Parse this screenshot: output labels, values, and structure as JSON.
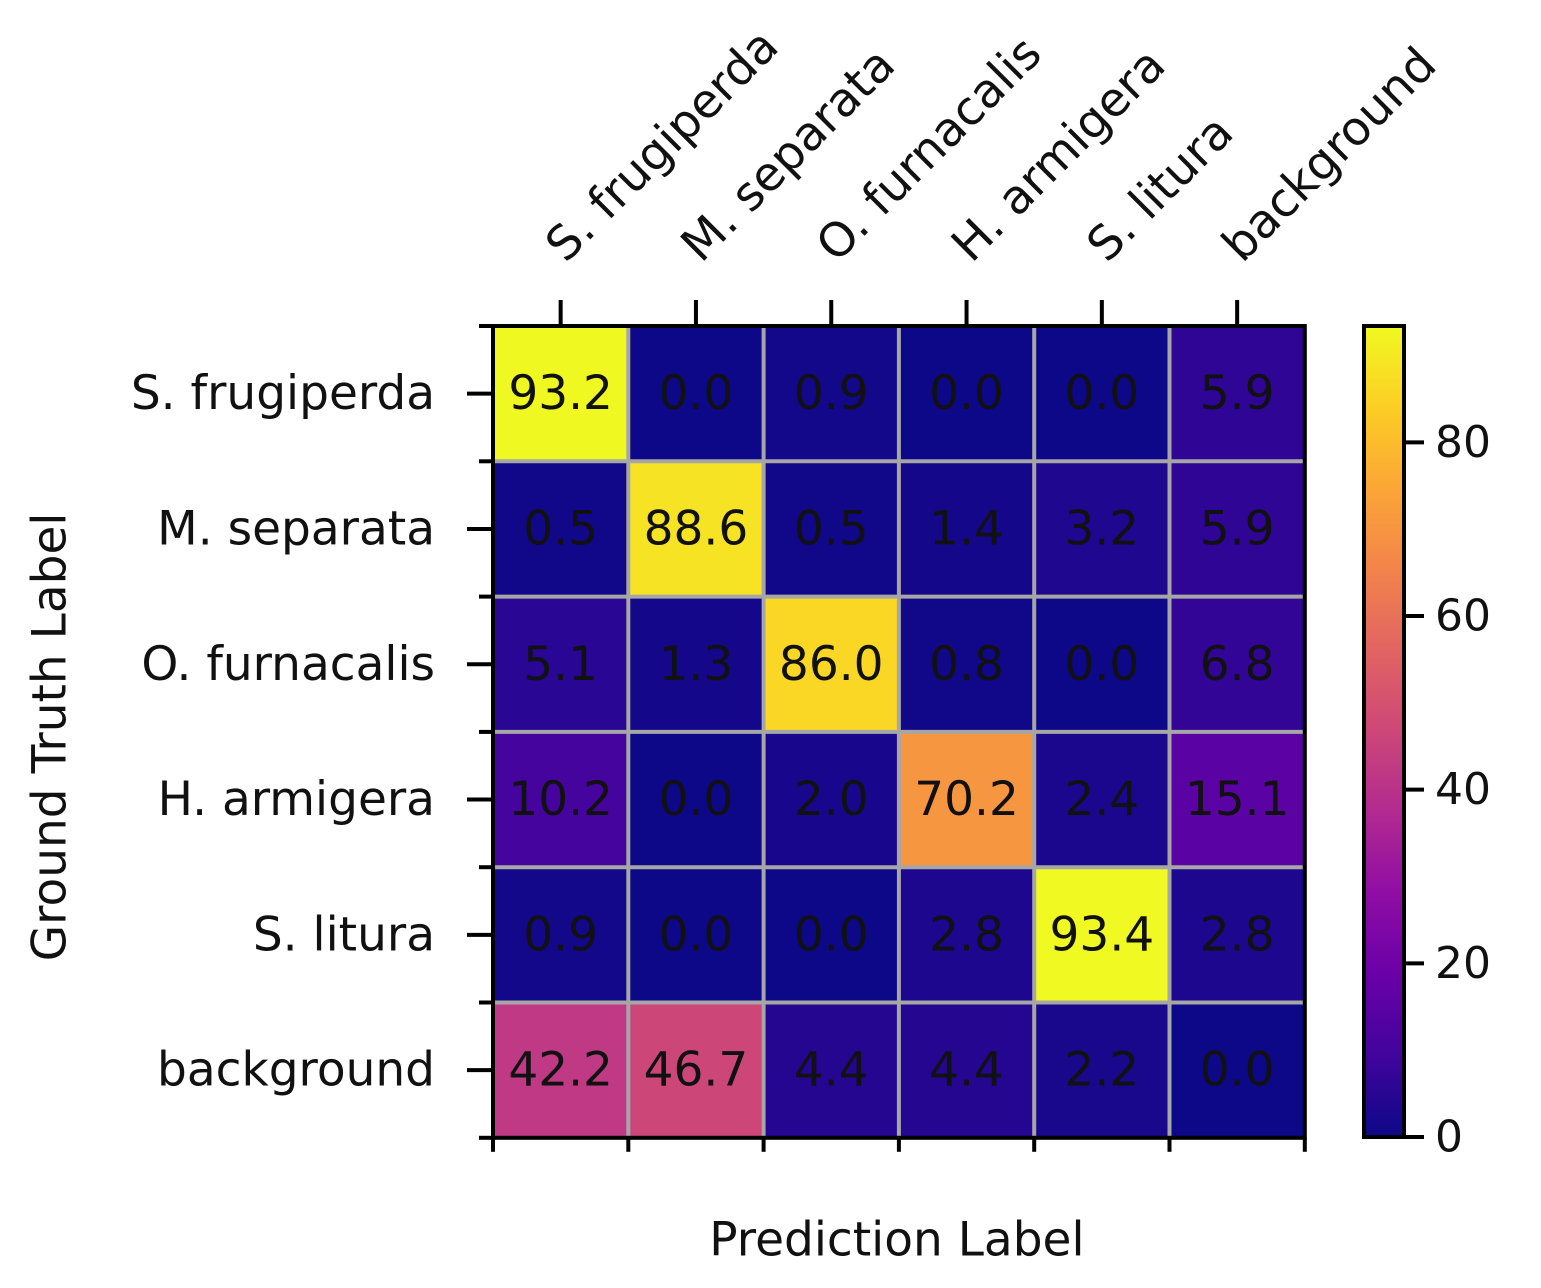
{
  "chart_data": {
    "type": "heatmap",
    "title": "",
    "xlabel": "Prediction Label",
    "ylabel": "Ground Truth Label",
    "x_categories": [
      "S. frugiperda",
      "M. separata",
      "O. furnacalis",
      "H. armigera",
      "S. litura",
      "background"
    ],
    "y_categories": [
      "S. frugiperda",
      "M. separata",
      "O. furnacalis",
      "H. armigera",
      "S. litura",
      "background"
    ],
    "values": [
      [
        93.2,
        0.0,
        0.9,
        0.0,
        0.0,
        5.9
      ],
      [
        0.5,
        88.6,
        0.5,
        1.4,
        3.2,
        5.9
      ],
      [
        5.1,
        1.3,
        86.0,
        0.8,
        0.0,
        6.8
      ],
      [
        10.2,
        0.0,
        2.0,
        70.2,
        2.4,
        15.1
      ],
      [
        0.9,
        0.0,
        0.0,
        2.8,
        93.4,
        2.8
      ],
      [
        42.2,
        46.7,
        4.4,
        4.4,
        2.2,
        0.0
      ]
    ],
    "value_labels": [
      [
        "93.2",
        "0.0",
        "0.9",
        "0.0",
        "0.0",
        "5.9"
      ],
      [
        "0.5",
        "88.6",
        "0.5",
        "1.4",
        "3.2",
        "5.9"
      ],
      [
        "5.1",
        "1.3",
        "86.0",
        "0.8",
        "0.0",
        "6.8"
      ],
      [
        "10.2",
        "0.0",
        "2.0",
        "70.2",
        "2.4",
        "15.1"
      ],
      [
        "0.9",
        "0.0",
        "0.0",
        "2.8",
        "93.4",
        "2.8"
      ],
      [
        "42.2",
        "46.7",
        "4.4",
        "4.4",
        "2.2",
        "0.0"
      ]
    ],
    "colormap": "plasma",
    "vmin": 0,
    "vmax": 93.4,
    "colorbar": {
      "ticks": [
        0,
        20,
        40,
        60,
        80
      ],
      "tick_labels": [
        "0",
        "20",
        "40",
        "60",
        "80"
      ]
    },
    "grid": true,
    "grid_color": "#a6a6a6",
    "x_tick_position": "top",
    "colorbar_position": "right"
  }
}
